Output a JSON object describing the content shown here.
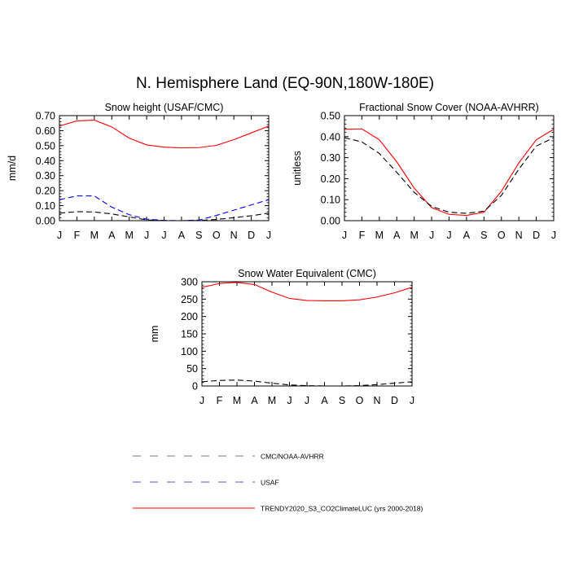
{
  "figure_title": "N. Hemisphere Land (EQ-90N,180W-180E)",
  "legend": [
    {
      "label": "CMC/NOAA-AVHRR",
      "color": "#000000",
      "dash": "dashed"
    },
    {
      "label": "USAF",
      "color": "#0000ff",
      "dash": "dashed"
    },
    {
      "label": "TRENDY2020_S3_CO2ClimateLUC (yrs 2000-2018)",
      "color": "#ff0000",
      "dash": "solid"
    }
  ],
  "chart_data": [
    {
      "type": "line",
      "title": "Snow height (USAF/CMC)",
      "xlabel": "",
      "ylabel": "mm/d",
      "categories": [
        "J",
        "F",
        "M",
        "A",
        "M",
        "J",
        "J",
        "A",
        "S",
        "O",
        "N",
        "D",
        "J"
      ],
      "ylim": [
        0,
        0.7
      ],
      "yticks": [
        "0.00",
        "0.10",
        "0.20",
        "0.30",
        "0.40",
        "0.50",
        "0.60",
        "0.70"
      ],
      "series": [
        {
          "name": "TRENDY2020_S3_CO2ClimateLUC (yrs 2000-2018)",
          "color": "#ff0000",
          "dash": "solid",
          "values": [
            0.63,
            0.665,
            0.67,
            0.625,
            0.55,
            0.505,
            0.49,
            0.485,
            0.487,
            0.502,
            0.54,
            0.585,
            0.63
          ]
        },
        {
          "name": "USAF",
          "color": "#0000ff",
          "dash": "dashed",
          "values": [
            0.14,
            0.165,
            0.165,
            0.09,
            0.04,
            0.01,
            0.002,
            0.0,
            0.004,
            0.035,
            0.07,
            0.105,
            0.14
          ]
        },
        {
          "name": "CMC/NOAA-AVHRR",
          "color": "#000000",
          "dash": "dashed",
          "values": [
            0.05,
            0.06,
            0.058,
            0.045,
            0.025,
            0.005,
            0.0,
            0.0,
            0.001,
            0.008,
            0.02,
            0.033,
            0.05
          ]
        }
      ]
    },
    {
      "type": "line",
      "title": "Fractional Snow Cover (NOAA-AVHRR)",
      "xlabel": "",
      "ylabel": "unitless",
      "categories": [
        "J",
        "F",
        "M",
        "A",
        "M",
        "J",
        "J",
        "A",
        "S",
        "O",
        "N",
        "D",
        "J"
      ],
      "ylim": [
        0,
        0.5
      ],
      "yticks": [
        "0.00",
        "0.10",
        "0.20",
        "0.30",
        "0.40",
        "0.50"
      ],
      "series": [
        {
          "name": "TRENDY2020_S3_CO2ClimateLUC (yrs 2000-2018)",
          "color": "#ff0000",
          "dash": "solid",
          "values": [
            0.435,
            0.437,
            0.385,
            0.28,
            0.155,
            0.062,
            0.03,
            0.025,
            0.04,
            0.14,
            0.275,
            0.385,
            0.435
          ]
        },
        {
          "name": "CMC/NOAA-AVHRR",
          "color": "#000000",
          "dash": "dashed",
          "values": [
            0.395,
            0.375,
            0.32,
            0.23,
            0.135,
            0.068,
            0.04,
            0.035,
            0.045,
            0.12,
            0.245,
            0.355,
            0.395
          ]
        }
      ]
    },
    {
      "type": "line",
      "title": "Snow Water Equivalent (CMC)",
      "xlabel": "",
      "ylabel": "mm",
      "categories": [
        "J",
        "F",
        "M",
        "A",
        "M",
        "J",
        "J",
        "A",
        "S",
        "O",
        "N",
        "D",
        "J"
      ],
      "ylim": [
        0,
        300
      ],
      "yticks": [
        "0",
        "50",
        "100",
        "150",
        "200",
        "250",
        "300"
      ],
      "series": [
        {
          "name": "TRENDY2020_S3_CO2ClimateLUC (yrs 2000-2018)",
          "color": "#ff0000",
          "dash": "solid",
          "values": [
            284,
            295,
            298,
            292,
            270,
            252,
            246,
            245,
            245,
            248,
            256,
            268,
            284
          ]
        },
        {
          "name": "CMC/NOAA-AVHRR",
          "color": "#000000",
          "dash": "dashed",
          "values": [
            12,
            16,
            17,
            14,
            8,
            3,
            1,
            0,
            0,
            1,
            4,
            8,
            12
          ]
        }
      ]
    }
  ]
}
